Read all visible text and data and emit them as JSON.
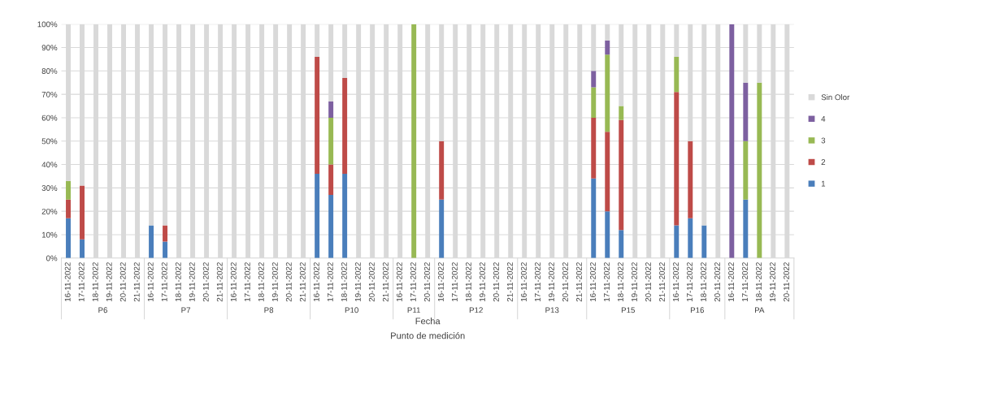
{
  "chart_data": {
    "type": "bar",
    "stacked": true,
    "xlabel": "Fecha",
    "annotations": [
      "P6",
      "P7",
      "P8",
      "P10",
      "P11",
      "P12",
      "P13",
      "P15",
      "P16",
      "PA",
      "Punto de medición"
    ],
    "categories": [
      "16-11-2022",
      "17-11-2022",
      "18-11-2022",
      "19-11-2022",
      "20-11-2022",
      "21-11-2022",
      "16-11-2022",
      "17-11-2022",
      "18-11-2022",
      "19-11-2022",
      "20-11-2022",
      "21-11-2022",
      "16-11-2022",
      "17-11-2022",
      "18-11-2022",
      "19-11-2022",
      "20-11-2022",
      "21-11-2022",
      "16-11-2022",
      "17-11-2022",
      "18-11-2022",
      "19-11-2022",
      "20-11-2022",
      "21-11-2022",
      "16-11-2022",
      "17-11-2022",
      "20-11-2022",
      "16-11-2022",
      "17-11-2022",
      "18-11-2022",
      "19-11-2022",
      "20-11-2022",
      "21-11-2022",
      "16-11-2022",
      "17-11-2022",
      "19-11-2022",
      "20-11-2022",
      "21-11-2022",
      "16-11-2022",
      "17-11-2022",
      "18-11-2022",
      "19-11-2022",
      "20-11-2022",
      "21-11-2022",
      "16-11-2022",
      "17-11-2022",
      "18-11-2022",
      "20-11-2022",
      "16-11-2022",
      "17-11-2022",
      "18-11-2022",
      "19-11-2022",
      "20-11-2022"
    ],
    "series": [
      {
        "name": "1",
        "color": "#4a7ebb",
        "values": [
          17,
          8,
          0,
          0,
          0,
          0,
          14,
          7,
          0,
          0,
          0,
          0,
          0,
          0,
          0,
          0,
          0,
          0,
          36,
          27,
          36,
          0,
          0,
          0,
          0,
          0,
          0,
          25,
          0,
          0,
          0,
          0,
          0,
          0,
          0,
          0,
          0,
          0,
          34,
          20,
          12,
          0,
          0,
          0,
          14,
          17,
          14,
          0,
          0,
          25,
          0,
          0,
          0
        ]
      },
      {
        "name": "2",
        "color": "#be4b48",
        "values": [
          8,
          23,
          0,
          0,
          0,
          0,
          0,
          7,
          0,
          0,
          0,
          0,
          0,
          0,
          0,
          0,
          0,
          0,
          50,
          13,
          41,
          0,
          0,
          0,
          0,
          0,
          0,
          25,
          0,
          0,
          0,
          0,
          0,
          0,
          0,
          0,
          0,
          0,
          26,
          34,
          47,
          0,
          0,
          0,
          57,
          33,
          0,
          0,
          0,
          0,
          0,
          0,
          0
        ]
      },
      {
        "name": "3",
        "color": "#98b954",
        "values": [
          8,
          0,
          0,
          0,
          0,
          0,
          0,
          0,
          0,
          0,
          0,
          0,
          0,
          0,
          0,
          0,
          0,
          0,
          0,
          20,
          0,
          0,
          0,
          0,
          0,
          100,
          0,
          0,
          0,
          0,
          0,
          0,
          0,
          0,
          0,
          0,
          0,
          0,
          13,
          33,
          6,
          0,
          0,
          0,
          15,
          0,
          0,
          0,
          0,
          25,
          75,
          0,
          0
        ]
      },
      {
        "name": "4",
        "color": "#7d60a0",
        "values": [
          0,
          0,
          0,
          0,
          0,
          0,
          0,
          0,
          0,
          0,
          0,
          0,
          0,
          0,
          0,
          0,
          0,
          0,
          0,
          7,
          0,
          0,
          0,
          0,
          0,
          0,
          0,
          0,
          0,
          0,
          0,
          0,
          0,
          0,
          0,
          0,
          0,
          0,
          7,
          6,
          0,
          0,
          0,
          0,
          0,
          0,
          0,
          0,
          100,
          25,
          0,
          0,
          0
        ]
      },
      {
        "name": "Sin Olor",
        "color": "#d9d9d9",
        "values": [
          67,
          69,
          100,
          100,
          100,
          100,
          86,
          86,
          100,
          100,
          100,
          100,
          100,
          100,
          100,
          100,
          100,
          100,
          14,
          33,
          23,
          100,
          100,
          100,
          100,
          0,
          100,
          50,
          100,
          100,
          100,
          100,
          100,
          100,
          100,
          100,
          100,
          100,
          20,
          7,
          35,
          100,
          100,
          100,
          14,
          50,
          86,
          100,
          0,
          25,
          25,
          100,
          100
        ]
      }
    ],
    "ylim": [
      0,
      100
    ],
    "yticks": [
      {
        "value": 0,
        "label": "0%"
      },
      {
        "value": 10,
        "label": "10%"
      },
      {
        "value": 20,
        "label": "20%"
      },
      {
        "value": 30,
        "label": "30%"
      },
      {
        "value": 40,
        "label": "40%"
      },
      {
        "value": 50,
        "label": "50%"
      },
      {
        "value": 60,
        "label": "60%"
      },
      {
        "value": 70,
        "label": "70%"
      },
      {
        "value": 80,
        "label": "80%"
      },
      {
        "value": 90,
        "label": "90%"
      },
      {
        "value": 100,
        "label": "100%"
      }
    ],
    "grid": "y",
    "legend": "right"
  }
}
